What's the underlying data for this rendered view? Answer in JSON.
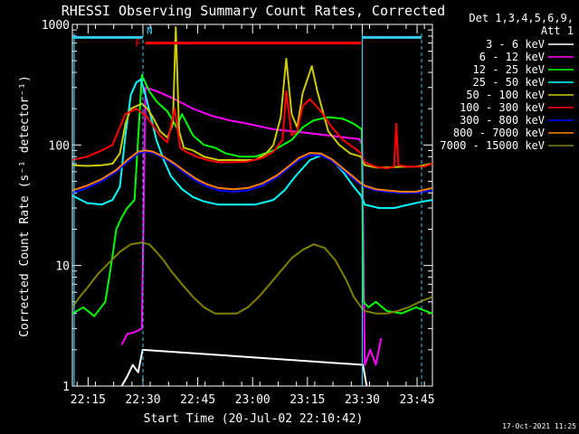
{
  "chart_data": {
    "type": "line",
    "title": "RHESSI Observing Summary Count Rates, Corrected",
    "xlabel": "Start Time (20-Jul-02 22:10:42)",
    "ylabel": "Corrected Count Rate (s⁻¹ detector⁻¹)",
    "x_units": "minutes after 22:10:42",
    "xlim": [
      0,
      98.5
    ],
    "ylim": [
      1,
      1000
    ],
    "yscale": "log",
    "x_ticks": [
      {
        "x": 4.3,
        "label": "22:15"
      },
      {
        "x": 19.3,
        "label": "22:30"
      },
      {
        "x": 34.3,
        "label": "22:45"
      },
      {
        "x": 49.3,
        "label": "23:00"
      },
      {
        "x": 64.3,
        "label": "23:15"
      },
      {
        "x": 79.3,
        "label": "23:30"
      },
      {
        "x": 94.3,
        "label": "23:45"
      }
    ],
    "y_ticks": [
      {
        "y": 1,
        "label": "1"
      },
      {
        "y": 10,
        "label": "10"
      },
      {
        "y": 100,
        "label": "100"
      },
      {
        "y": 1000,
        "label": "1000"
      }
    ],
    "legend": {
      "header1": "Det 1,3,4,5,6,9,",
      "header2": "Att 1",
      "placement": "right"
    },
    "annotations": {
      "F": "F",
      "N": "N"
    },
    "flags": {
      "night_before_end": 19.3,
      "night_after_start": 79.3,
      "flare": [
        20.0,
        79.0
      ],
      "flare_level": 700,
      "night_level": 780
    },
    "series": [
      {
        "name": "3 - 6 keV",
        "color": "#ffffff",
        "x": [
          13.5,
          15,
          16.5,
          18,
          19.2,
          79.5,
          80.5
        ],
        "y": [
          1.0,
          1.2,
          1.5,
          1.3,
          2.0,
          1.5,
          1.0
        ]
      },
      {
        "name": "6 - 12 keV",
        "color": "#ff00ff",
        "x": [
          13.5,
          15,
          17,
          19.0,
          20.0,
          23,
          28,
          33,
          38,
          43,
          48,
          55,
          60,
          65,
          70,
          75,
          78.5,
          79.3,
          80,
          81.5,
          83,
          84.5
        ],
        "y": [
          2.2,
          2.7,
          2.8,
          3.0,
          300,
          280,
          240,
          200,
          175,
          160,
          150,
          135,
          130,
          125,
          120,
          115,
          112,
          100,
          1.5,
          2.0,
          1.5,
          2.5
        ]
      },
      {
        "name": "12 - 25 keV",
        "color": "#00ff00",
        "x": [
          0,
          3,
          6,
          9,
          11,
          12,
          13.5,
          15,
          17,
          19,
          21,
          23,
          26,
          28.5,
          30,
          33,
          36,
          39,
          42,
          46,
          50,
          55,
          60,
          63,
          66,
          70,
          74,
          77,
          79.2,
          79.6,
          81,
          83,
          86,
          90,
          94,
          98.5
        ],
        "y": [
          4.0,
          4.5,
          3.8,
          5.0,
          12,
          20,
          25,
          30,
          35,
          380,
          280,
          230,
          190,
          140,
          180,
          120,
          100,
          95,
          85,
          80,
          80,
          90,
          110,
          140,
          160,
          170,
          165,
          150,
          135,
          5.0,
          4.5,
          5.0,
          4.2,
          4.0,
          4.5,
          4.0
        ]
      },
      {
        "name": "25 - 50 keV",
        "color": "#00ffff",
        "x": [
          0,
          4,
          8,
          11,
          13,
          14.5,
          16,
          17.5,
          18.7,
          20,
          21.5,
          23,
          25,
          27,
          30,
          33,
          36,
          40,
          45,
          50,
          55,
          58,
          61,
          65,
          68,
          71,
          74,
          77,
          79,
          80,
          84,
          88,
          92,
          96,
          98.5
        ],
        "y": [
          38,
          33,
          32,
          35,
          45,
          120,
          260,
          330,
          350,
          260,
          170,
          110,
          75,
          55,
          43,
          37,
          34,
          32,
          32,
          32,
          35,
          42,
          55,
          75,
          82,
          75,
          60,
          45,
          38,
          32,
          30,
          30,
          32,
          34,
          35
        ]
      },
      {
        "name": "50 - 100 keV",
        "color": "#cccc00",
        "x": [
          0,
          4,
          8,
          11,
          13,
          14.5,
          16,
          17.5,
          19,
          20.5,
          22,
          24,
          26,
          27.5,
          28.3,
          29.2,
          30.5,
          33,
          36,
          40,
          45,
          50,
          53,
          55,
          57,
          58.5,
          60,
          61.5,
          63,
          65.5,
          67,
          70,
          73,
          76,
          79,
          80,
          83,
          86,
          90,
          94,
          98.5
        ],
        "y": [
          68,
          67,
          68,
          70,
          85,
          150,
          200,
          210,
          220,
          200,
          170,
          130,
          115,
          150,
          950,
          130,
          95,
          90,
          80,
          75,
          75,
          75,
          85,
          100,
          170,
          520,
          180,
          140,
          270,
          450,
          280,
          130,
          100,
          85,
          80,
          68,
          65,
          65,
          66,
          66,
          70
        ]
      },
      {
        "name": "100 - 300 keV",
        "color": "#ff0000",
        "x": [
          0,
          4,
          8,
          11,
          13,
          14.5,
          16,
          17.5,
          19,
          20.5,
          22,
          24,
          26,
          28,
          29.5,
          31,
          34,
          37,
          40,
          44,
          48,
          52,
          55,
          57.5,
          58.5,
          60,
          61.5,
          63,
          65,
          68,
          71,
          74,
          77,
          79,
          80,
          83,
          86,
          88,
          88.6,
          89.2,
          92,
          96,
          98.5
        ],
        "y": [
          75,
          80,
          90,
          100,
          140,
          180,
          190,
          200,
          185,
          170,
          145,
          120,
          105,
          200,
          95,
          88,
          80,
          75,
          72,
          72,
          73,
          78,
          88,
          110,
          280,
          120,
          130,
          210,
          240,
          190,
          140,
          110,
          95,
          85,
          72,
          66,
          64,
          66,
          150,
          68,
          66,
          66,
          70
        ]
      },
      {
        "name": "300 - 800 keV",
        "color": "#0000ff",
        "x": [
          0,
          4,
          8,
          12,
          15,
          18,
          20,
          22,
          25,
          28,
          31,
          34,
          37,
          40,
          44,
          48,
          52,
          56,
          59,
          62,
          65,
          68,
          71,
          74,
          77,
          79,
          80,
          83,
          86,
          90,
          94,
          98.5
        ],
        "y": [
          40,
          44,
          50,
          60,
          72,
          85,
          88,
          86,
          78,
          68,
          58,
          50,
          45,
          42,
          41,
          42,
          46,
          54,
          64,
          75,
          82,
          82,
          74,
          62,
          52,
          47,
          45,
          42,
          41,
          40,
          40,
          42
        ]
      },
      {
        "name": "800 - 7000 keV",
        "color": "#ff8000",
        "x": [
          0,
          4,
          8,
          12,
          15,
          18,
          20,
          22,
          25,
          28,
          31,
          34,
          37,
          40,
          44,
          48,
          52,
          56,
          59,
          62,
          65,
          68,
          71,
          74,
          77,
          79,
          80,
          83,
          86,
          90,
          94,
          98.5
        ],
        "y": [
          42,
          46,
          52,
          62,
          75,
          88,
          90,
          88,
          80,
          70,
          60,
          52,
          47,
          44,
          43,
          44,
          48,
          56,
          66,
          78,
          86,
          85,
          76,
          64,
          54,
          48,
          46,
          43,
          42,
          41,
          41,
          44
        ]
      },
      {
        "name": "7000 - 15000 keV",
        "color": "#808000",
        "x": [
          0,
          2,
          4,
          7,
          10,
          13,
          16,
          19,
          21,
          23,
          25,
          27,
          30,
          33,
          36,
          39,
          42,
          45,
          48,
          51,
          54,
          57,
          60,
          63,
          66,
          69,
          72,
          75,
          77,
          79,
          80,
          83,
          86,
          89,
          92,
          95,
          98.5
        ],
        "y": [
          4.5,
          5.5,
          6.5,
          8.5,
          10.5,
          13,
          15,
          15.5,
          15,
          13,
          11,
          9,
          7,
          5.5,
          4.5,
          4.0,
          4.0,
          4.0,
          4.5,
          5.5,
          7,
          9,
          11.5,
          13.5,
          15,
          14,
          11,
          7.5,
          5.5,
          4.5,
          4.2,
          4.0,
          4.0,
          4.2,
          4.5,
          5.0,
          5.5
        ]
      }
    ]
  },
  "footer": {
    "date": "17-Oct-2021 11:25"
  }
}
